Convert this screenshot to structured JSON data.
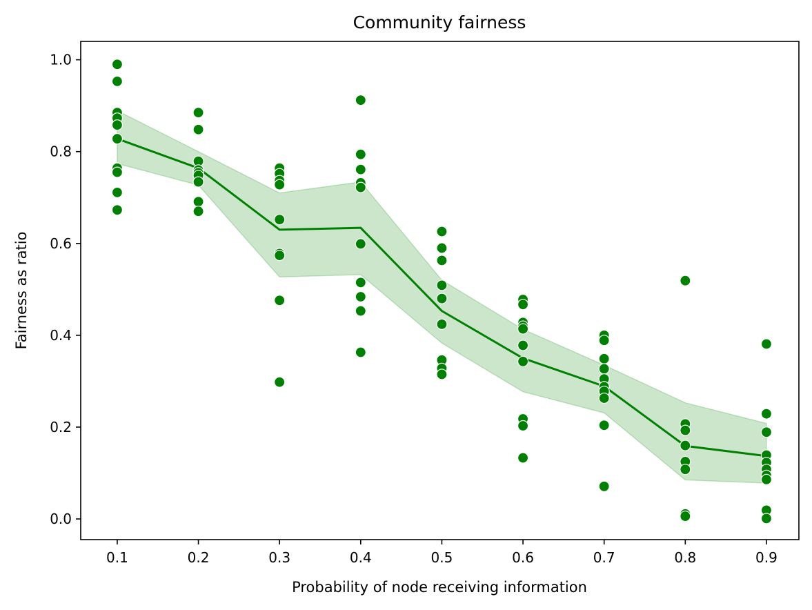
{
  "chart_data": {
    "type": "scatter",
    "title": "Community fairness",
    "xlabel": "Probability of node receiving information",
    "ylabel": "Fairness as ratio",
    "xlim": [
      0.055,
      0.94
    ],
    "ylim": [
      -0.045,
      1.04
    ],
    "xticks": [
      "0.1",
      "0.2",
      "0.3",
      "0.4",
      "0.5",
      "0.6",
      "0.7",
      "0.8",
      "0.9"
    ],
    "yticks": [
      "0.0",
      "0.2",
      "0.4",
      "0.6",
      "0.8",
      "1.0"
    ],
    "grid": false,
    "colors": {
      "points": "#008000",
      "line": "#008000",
      "band": "#008000"
    },
    "points": [
      {
        "x": 0.1,
        "y": 0.99
      },
      {
        "x": 0.1,
        "y": 0.953
      },
      {
        "x": 0.1,
        "y": 0.885
      },
      {
        "x": 0.1,
        "y": 0.873
      },
      {
        "x": 0.1,
        "y": 0.858
      },
      {
        "x": 0.1,
        "y": 0.828
      },
      {
        "x": 0.1,
        "y": 0.764
      },
      {
        "x": 0.1,
        "y": 0.755
      },
      {
        "x": 0.1,
        "y": 0.711
      },
      {
        "x": 0.1,
        "y": 0.673
      },
      {
        "x": 0.2,
        "y": 0.885
      },
      {
        "x": 0.2,
        "y": 0.848
      },
      {
        "x": 0.2,
        "y": 0.779
      },
      {
        "x": 0.2,
        "y": 0.76
      },
      {
        "x": 0.2,
        "y": 0.754
      },
      {
        "x": 0.2,
        "y": 0.748
      },
      {
        "x": 0.2,
        "y": 0.734
      },
      {
        "x": 0.2,
        "y": 0.691
      },
      {
        "x": 0.2,
        "y": 0.67
      },
      {
        "x": 0.3,
        "y": 0.764
      },
      {
        "x": 0.3,
        "y": 0.752
      },
      {
        "x": 0.3,
        "y": 0.737
      },
      {
        "x": 0.3,
        "y": 0.728
      },
      {
        "x": 0.3,
        "y": 0.652
      },
      {
        "x": 0.3,
        "y": 0.578
      },
      {
        "x": 0.3,
        "y": 0.574
      },
      {
        "x": 0.3,
        "y": 0.476
      },
      {
        "x": 0.3,
        "y": 0.298
      },
      {
        "x": 0.4,
        "y": 0.912
      },
      {
        "x": 0.4,
        "y": 0.794
      },
      {
        "x": 0.4,
        "y": 0.761
      },
      {
        "x": 0.4,
        "y": 0.732
      },
      {
        "x": 0.4,
        "y": 0.722
      },
      {
        "x": 0.4,
        "y": 0.599
      },
      {
        "x": 0.4,
        "y": 0.515
      },
      {
        "x": 0.4,
        "y": 0.484
      },
      {
        "x": 0.4,
        "y": 0.453
      },
      {
        "x": 0.4,
        "y": 0.363
      },
      {
        "x": 0.5,
        "y": 0.626
      },
      {
        "x": 0.5,
        "y": 0.59
      },
      {
        "x": 0.5,
        "y": 0.563
      },
      {
        "x": 0.5,
        "y": 0.509
      },
      {
        "x": 0.5,
        "y": 0.48
      },
      {
        "x": 0.5,
        "y": 0.424
      },
      {
        "x": 0.5,
        "y": 0.346
      },
      {
        "x": 0.5,
        "y": 0.328
      },
      {
        "x": 0.5,
        "y": 0.315
      },
      {
        "x": 0.6,
        "y": 0.478
      },
      {
        "x": 0.6,
        "y": 0.467
      },
      {
        "x": 0.6,
        "y": 0.428
      },
      {
        "x": 0.6,
        "y": 0.42
      },
      {
        "x": 0.6,
        "y": 0.414
      },
      {
        "x": 0.6,
        "y": 0.378
      },
      {
        "x": 0.6,
        "y": 0.343
      },
      {
        "x": 0.6,
        "y": 0.218
      },
      {
        "x": 0.6,
        "y": 0.203
      },
      {
        "x": 0.6,
        "y": 0.133
      },
      {
        "x": 0.7,
        "y": 0.4
      },
      {
        "x": 0.7,
        "y": 0.389
      },
      {
        "x": 0.7,
        "y": 0.349
      },
      {
        "x": 0.7,
        "y": 0.327
      },
      {
        "x": 0.7,
        "y": 0.305
      },
      {
        "x": 0.7,
        "y": 0.288
      },
      {
        "x": 0.7,
        "y": 0.278
      },
      {
        "x": 0.7,
        "y": 0.263
      },
      {
        "x": 0.7,
        "y": 0.204
      },
      {
        "x": 0.7,
        "y": 0.071
      },
      {
        "x": 0.8,
        "y": 0.519
      },
      {
        "x": 0.8,
        "y": 0.207
      },
      {
        "x": 0.8,
        "y": 0.193
      },
      {
        "x": 0.8,
        "y": 0.16
      },
      {
        "x": 0.8,
        "y": 0.125
      },
      {
        "x": 0.8,
        "y": 0.108
      },
      {
        "x": 0.8,
        "y": 0.011
      },
      {
        "x": 0.8,
        "y": 0.006
      },
      {
        "x": 0.9,
        "y": 0.381
      },
      {
        "x": 0.9,
        "y": 0.229
      },
      {
        "x": 0.9,
        "y": 0.189
      },
      {
        "x": 0.9,
        "y": 0.139
      },
      {
        "x": 0.9,
        "y": 0.123
      },
      {
        "x": 0.9,
        "y": 0.108
      },
      {
        "x": 0.9,
        "y": 0.095
      },
      {
        "x": 0.9,
        "y": 0.086
      },
      {
        "x": 0.9,
        "y": 0.019
      },
      {
        "x": 0.9,
        "y": 0.001
      }
    ],
    "mean_line": [
      {
        "x": 0.1,
        "y": 0.828
      },
      {
        "x": 0.2,
        "y": 0.764
      },
      {
        "x": 0.3,
        "y": 0.63
      },
      {
        "x": 0.4,
        "y": 0.634
      },
      {
        "x": 0.5,
        "y": 0.453
      },
      {
        "x": 0.6,
        "y": 0.35
      },
      {
        "x": 0.7,
        "y": 0.289
      },
      {
        "x": 0.8,
        "y": 0.159
      },
      {
        "x": 0.9,
        "y": 0.137
      }
    ],
    "confidence_band": [
      {
        "x": 0.1,
        "low": 0.774,
        "high": 0.889
      },
      {
        "x": 0.2,
        "low": 0.727,
        "high": 0.8
      },
      {
        "x": 0.3,
        "low": 0.527,
        "high": 0.71
      },
      {
        "x": 0.4,
        "low": 0.532,
        "high": 0.734
      },
      {
        "x": 0.5,
        "low": 0.383,
        "high": 0.52
      },
      {
        "x": 0.6,
        "low": 0.277,
        "high": 0.413
      },
      {
        "x": 0.7,
        "low": 0.231,
        "high": 0.335
      },
      {
        "x": 0.8,
        "low": 0.085,
        "high": 0.253
      },
      {
        "x": 0.9,
        "low": 0.078,
        "high": 0.208
      }
    ]
  }
}
